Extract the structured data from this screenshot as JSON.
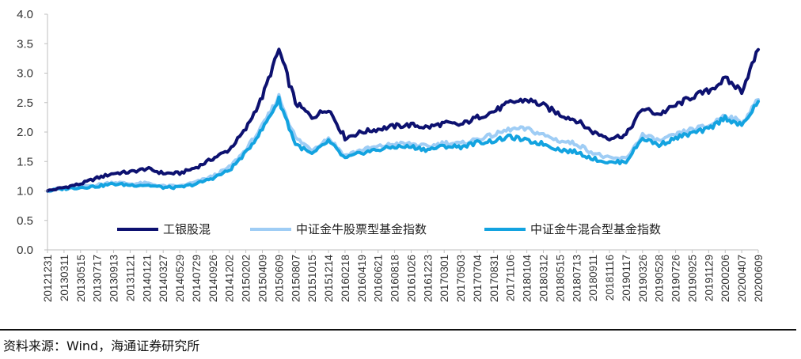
{
  "chart_data": {
    "type": "line",
    "title": "",
    "xlabel": "",
    "ylabel": "",
    "ylim": [
      0,
      4
    ],
    "yticks": [
      "0.0",
      "0.5",
      "1.0",
      "1.5",
      "2.0",
      "2.5",
      "3.0",
      "3.5",
      "4.0"
    ],
    "categories": [
      "20121231",
      "20130311",
      "20130515",
      "20130717",
      "20130913",
      "20131121",
      "20140121",
      "20140327",
      "20140529",
      "20140729",
      "20140926",
      "20141202",
      "20150202",
      "20150409",
      "20150609",
      "20150807",
      "20151015",
      "20151214",
      "20160218",
      "20160419",
      "20160621",
      "20160818",
      "20161026",
      "20161223",
      "20170301",
      "20170503",
      "20170704",
      "20170831",
      "20171106",
      "20180104",
      "20180312",
      "20180515",
      "20180713",
      "20180911",
      "20181116",
      "20190117",
      "20190326",
      "20190528",
      "20190726",
      "20190925",
      "20191129",
      "20200206",
      "20200407",
      "20200609"
    ],
    "legend_position": "bottom-inside",
    "series": [
      {
        "name": "工银股混",
        "color": "#0d1170",
        "values": [
          1.0,
          1.06,
          1.12,
          1.22,
          1.3,
          1.32,
          1.38,
          1.3,
          1.3,
          1.4,
          1.55,
          1.7,
          2.05,
          2.6,
          3.4,
          2.5,
          2.25,
          2.4,
          1.9,
          2.0,
          2.05,
          2.1,
          2.12,
          2.08,
          2.15,
          2.12,
          2.25,
          2.35,
          2.5,
          2.55,
          2.45,
          2.3,
          2.2,
          2.0,
          1.9,
          1.95,
          2.4,
          2.3,
          2.45,
          2.6,
          2.7,
          2.9,
          2.7,
          3.4
        ]
      },
      {
        "name": "中证金牛股票型基金指数",
        "color": "#9fcdf5",
        "values": [
          1.0,
          1.05,
          1.08,
          1.1,
          1.15,
          1.12,
          1.13,
          1.08,
          1.08,
          1.15,
          1.25,
          1.4,
          1.7,
          2.1,
          2.6,
          1.9,
          1.7,
          1.9,
          1.6,
          1.7,
          1.75,
          1.8,
          1.8,
          1.75,
          1.82,
          1.8,
          1.88,
          1.95,
          2.05,
          2.05,
          1.95,
          1.85,
          1.8,
          1.65,
          1.55,
          1.55,
          1.95,
          1.85,
          1.95,
          2.05,
          2.1,
          2.3,
          2.15,
          2.55
        ]
      },
      {
        "name": "中证金牛混合型基金指数",
        "color": "#13a3e0",
        "values": [
          1.0,
          1.04,
          1.06,
          1.08,
          1.12,
          1.1,
          1.1,
          1.06,
          1.06,
          1.12,
          1.22,
          1.35,
          1.65,
          2.05,
          2.55,
          1.8,
          1.62,
          1.85,
          1.55,
          1.65,
          1.7,
          1.75,
          1.75,
          1.7,
          1.76,
          1.75,
          1.82,
          1.85,
          1.92,
          1.85,
          1.8,
          1.7,
          1.66,
          1.55,
          1.48,
          1.5,
          1.9,
          1.78,
          1.9,
          1.98,
          2.05,
          2.25,
          2.1,
          2.52
        ]
      }
    ]
  },
  "source_note": "资料来源：Wind，海通证券研究所"
}
